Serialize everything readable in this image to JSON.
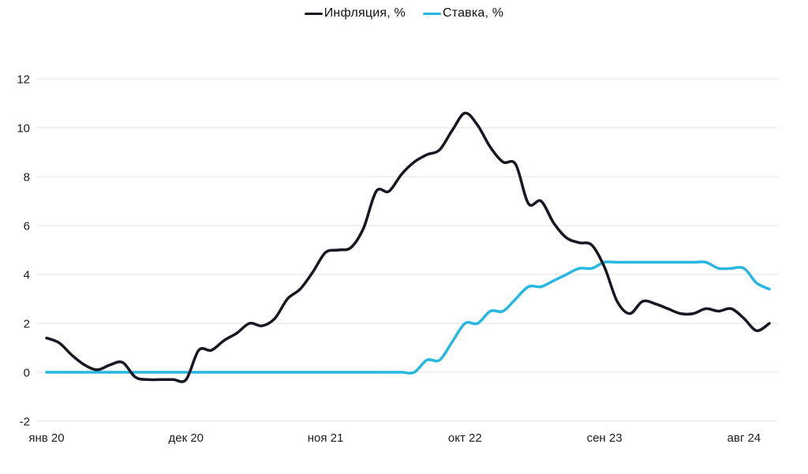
{
  "legend": {
    "items": [
      {
        "key": "inflation",
        "label": "Инфляция, %",
        "color": "#181824"
      },
      {
        "key": "rate",
        "label": "Ставка, %",
        "color": "#27b7e1"
      }
    ]
  },
  "chart_data": {
    "type": "line",
    "title": "",
    "xlabel": "",
    "ylabel": "",
    "x_unit": "month",
    "x_tick_labels": [
      "янв 20",
      "дек 20",
      "ноя 21",
      "окт 22",
      "сен 23",
      "авг 24"
    ],
    "x_tick_indices": [
      0,
      11,
      22,
      33,
      44,
      55
    ],
    "y_ticks": [
      -2,
      0,
      2,
      4,
      6,
      8,
      10,
      12
    ],
    "ylim": [
      -2,
      12
    ],
    "grid": "horizontal",
    "gridline_color": "#e2e2e2",
    "legend_position": "top-center",
    "series": [
      {
        "name": "Инфляция, %",
        "key": "inflation-line",
        "color": "#181824",
        "values": [
          1.4,
          1.2,
          0.7,
          0.3,
          0.1,
          0.3,
          0.4,
          -0.2,
          -0.3,
          -0.3,
          -0.3,
          -0.3,
          0.9,
          0.9,
          1.3,
          1.6,
          2.0,
          1.9,
          2.2,
          3.0,
          3.4,
          4.1,
          4.9,
          5.0,
          5.1,
          5.9,
          7.4,
          7.4,
          8.1,
          8.6,
          8.9,
          9.1,
          9.9,
          10.6,
          10.1,
          9.2,
          8.6,
          8.5,
          6.9,
          7.0,
          6.1,
          5.5,
          5.3,
          5.2,
          4.3,
          2.9,
          2.4,
          2.9,
          2.8,
          2.6,
          2.4,
          2.4,
          2.6,
          2.5,
          2.6,
          2.2,
          1.7,
          2.0
        ]
      },
      {
        "name": "Ставка, %",
        "key": "rate-line",
        "color": "#27b7e1",
        "values": [
          0,
          0,
          0,
          0,
          0,
          0,
          0,
          0,
          0,
          0,
          0,
          0,
          0,
          0,
          0,
          0,
          0,
          0,
          0,
          0,
          0,
          0,
          0,
          0,
          0,
          0,
          0,
          0,
          0,
          0,
          0.5,
          0.5,
          1.25,
          2.0,
          2.0,
          2.5,
          2.5,
          3.0,
          3.5,
          3.5,
          3.75,
          4.0,
          4.25,
          4.25,
          4.5,
          4.5,
          4.5,
          4.5,
          4.5,
          4.5,
          4.5,
          4.5,
          4.5,
          4.25,
          4.25,
          4.25,
          3.65,
          3.4
        ]
      }
    ]
  }
}
